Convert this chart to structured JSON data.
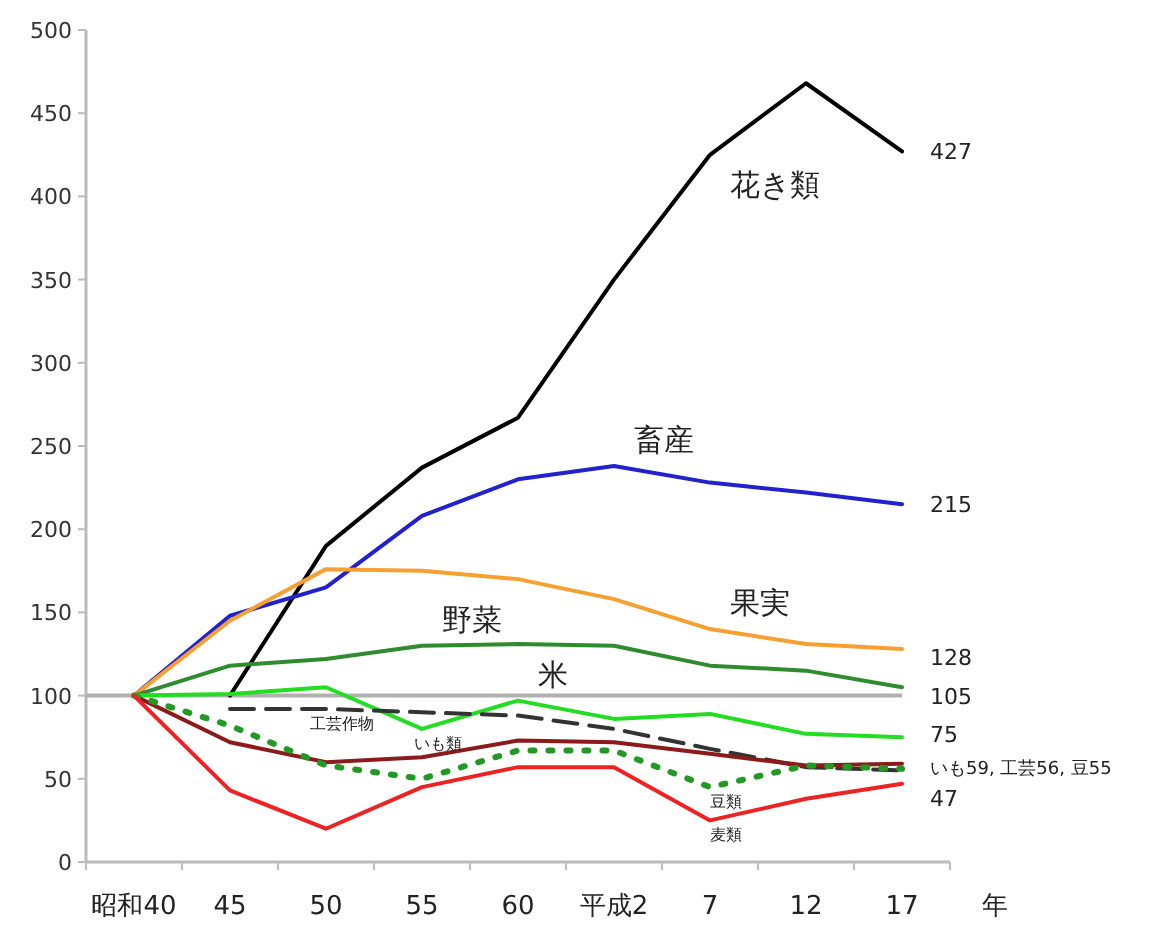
{
  "chart_data": {
    "type": "line",
    "categories": [
      "昭和40",
      "45",
      "50",
      "55",
      "60",
      "平成2",
      "7",
      "12",
      "17"
    ],
    "xlabel": "年",
    "ylim": [
      0,
      500
    ],
    "yticks": [
      0,
      50,
      100,
      150,
      200,
      250,
      300,
      350,
      400,
      450,
      500
    ],
    "grid": false,
    "marker": "none",
    "series": [
      {
        "color": "#000000",
        "values": [
          null,
          100,
          190,
          237,
          267,
          350,
          425,
          468,
          427
        ]
      },
      {
        "color": "#2222cc",
        "values": [
          100,
          148,
          165,
          208,
          230,
          238,
          228,
          222,
          215
        ]
      },
      {
        "color": "#f5a030",
        "values": [
          100,
          145,
          176,
          175,
          170,
          158,
          140,
          131,
          128
        ]
      },
      {
        "color": "#2e8b2e",
        "values": [
          100,
          118,
          122,
          130,
          131,
          130,
          118,
          115,
          105
        ]
      },
      {
        "color": "#22dd22",
        "values": [
          100,
          101,
          105,
          80,
          97,
          86,
          89,
          77,
          75
        ]
      },
      {
        "color": "#333333",
        "line_style": "dashed",
        "values": [
          null,
          92,
          92,
          90,
          88,
          80,
          68,
          57,
          55
        ]
      },
      {
        "color": "#8b1a1a",
        "values": [
          100,
          72,
          60,
          63,
          73,
          72,
          65,
          58,
          59
        ]
      },
      {
        "color": "#229922",
        "line_style": "dotted",
        "values": [
          100,
          82,
          58,
          50,
          67,
          67,
          45,
          58,
          56
        ]
      },
      {
        "color": "#ee2222",
        "values": [
          100,
          43,
          20,
          45,
          57,
          57,
          25,
          38,
          47
        ]
      }
    ],
    "ref_lines": [
      {
        "axis": "y",
        "value": 100,
        "color": "#b0b0b0"
      }
    ],
    "annotations": [
      {
        "text": "花き類",
        "x": "7",
        "y": 425
      },
      {
        "text": "畜産",
        "x": "平成2",
        "y": 238
      },
      {
        "text": "果実",
        "x": "7",
        "y": 140
      },
      {
        "text": "野菜",
        "x": "55",
        "y": 130
      },
      {
        "text": "米",
        "x": "60",
        "y": 97
      },
      {
        "text": "工芸作物",
        "x": "50",
        "y": 92
      },
      {
        "text": "いも類",
        "x": "55",
        "y": 80
      },
      {
        "text": "豆類",
        "x": "7",
        "y": 45
      },
      {
        "text": "麦類",
        "x": "7",
        "y": 25
      },
      {
        "text": "427",
        "x": "17",
        "y": 427
      },
      {
        "text": "215",
        "x": "17",
        "y": 215
      },
      {
        "text": "128",
        "x": "17",
        "y": 123
      },
      {
        "text": "105",
        "x": "17",
        "y": 100
      },
      {
        "text": "75",
        "x": "17",
        "y": 77
      },
      {
        "text": "いも59, 工芸56, 豆55",
        "x": "17",
        "y": 59
      },
      {
        "text": "47",
        "x": "17",
        "y": 47
      }
    ]
  }
}
